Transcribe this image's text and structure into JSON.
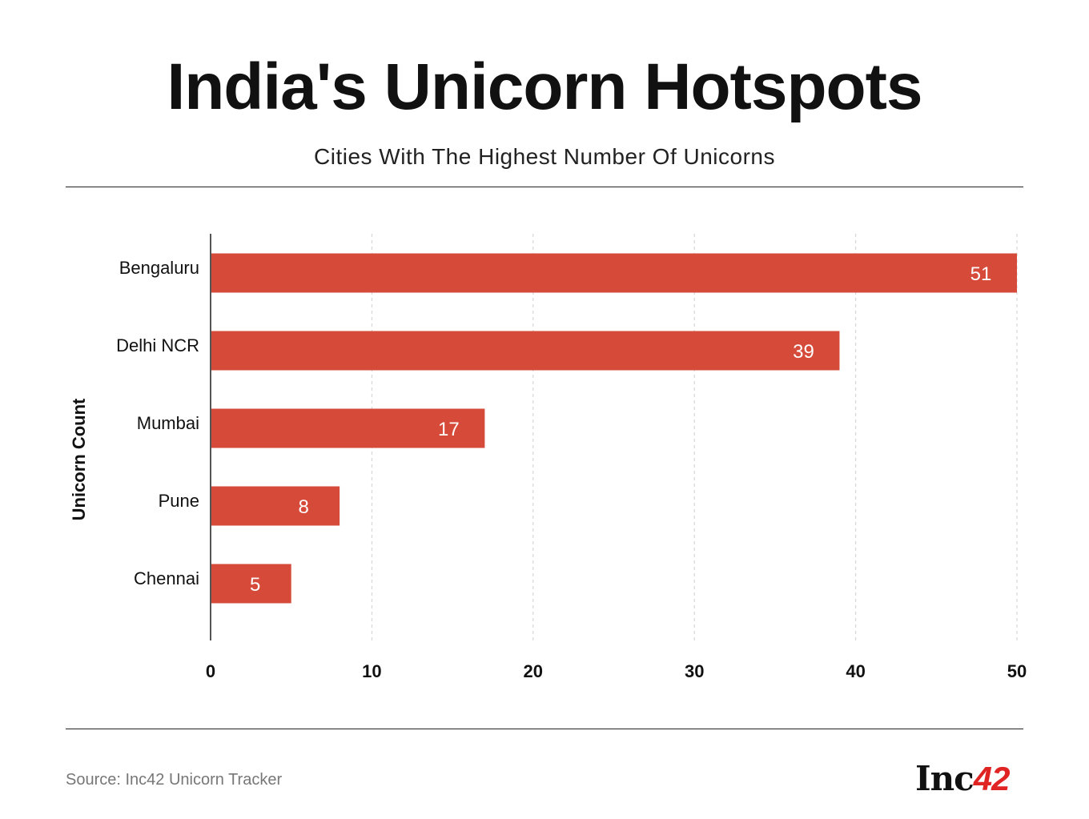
{
  "header": {
    "title": "India's Unicorn Hotspots",
    "subtitle": "Cities With The Highest Number Of Unicorns"
  },
  "chart_data": {
    "type": "bar",
    "orientation": "horizontal",
    "title": "India's Unicorn Hotspots",
    "subtitle": "Cities With The Highest Number Of Unicorns",
    "categories": [
      "Bengaluru",
      "Delhi NCR",
      "Mumbai",
      "Pune",
      "Chennai"
    ],
    "values": [
      51,
      39,
      17,
      8,
      5
    ],
    "xlabel": "",
    "ylabel": "Unicorn Count",
    "xlim": [
      0,
      50
    ],
    "xticks": [
      "0",
      "10",
      "20",
      "30",
      "40",
      "50"
    ],
    "grid": "vertical dashed",
    "bar_color": "#d64a3a",
    "label_color": "#ffffff"
  },
  "footer": {
    "source": "Source: Inc42 Unicorn Tracker",
    "logo_text": "Inc",
    "logo_accent": "42"
  }
}
